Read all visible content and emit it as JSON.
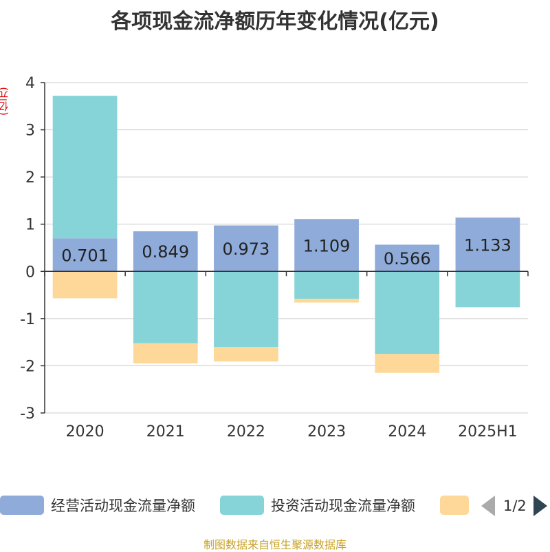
{
  "title": "各项现金流净额历年变化情况(亿元)",
  "unit_label": "(亿元)",
  "source": "制图数据来自恒生聚源数据库",
  "legend": {
    "items": [
      {
        "label": "经营活动现金流量净额",
        "color": "#8eabd9"
      },
      {
        "label": "投资活动现金流量净额",
        "color": "#86d4d8"
      },
      {
        "label": "",
        "color": "#fdd898"
      }
    ],
    "page": "1/2"
  },
  "chart_data": {
    "type": "bar",
    "stacked": true,
    "categories": [
      "2020",
      "2021",
      "2022",
      "2023",
      "2024",
      "2025H1"
    ],
    "ylim": [
      -3,
      4
    ],
    "yticks": [
      4,
      3,
      2,
      1,
      0,
      -1,
      -2,
      -3
    ],
    "grid": true,
    "legend_position": "bottom",
    "series": [
      {
        "name": "经营活动现金流量净额",
        "color": "#8eabd9",
        "values": [
          0.701,
          0.849,
          0.973,
          1.109,
          0.566,
          1.133
        ],
        "labels": [
          "0.701",
          "0.849",
          "0.973",
          "1.109",
          "0.566",
          "1.133"
        ]
      },
      {
        "name": "投资活动现金流量净额",
        "color": "#86d4d8",
        "values": [
          3.02,
          -1.52,
          -1.6,
          -0.58,
          -1.75,
          -0.76
        ]
      },
      {
        "name": "",
        "color": "#fdd898",
        "values": [
          -0.57,
          -0.43,
          -0.31,
          -0.08,
          -0.4,
          0.02
        ]
      }
    ]
  }
}
